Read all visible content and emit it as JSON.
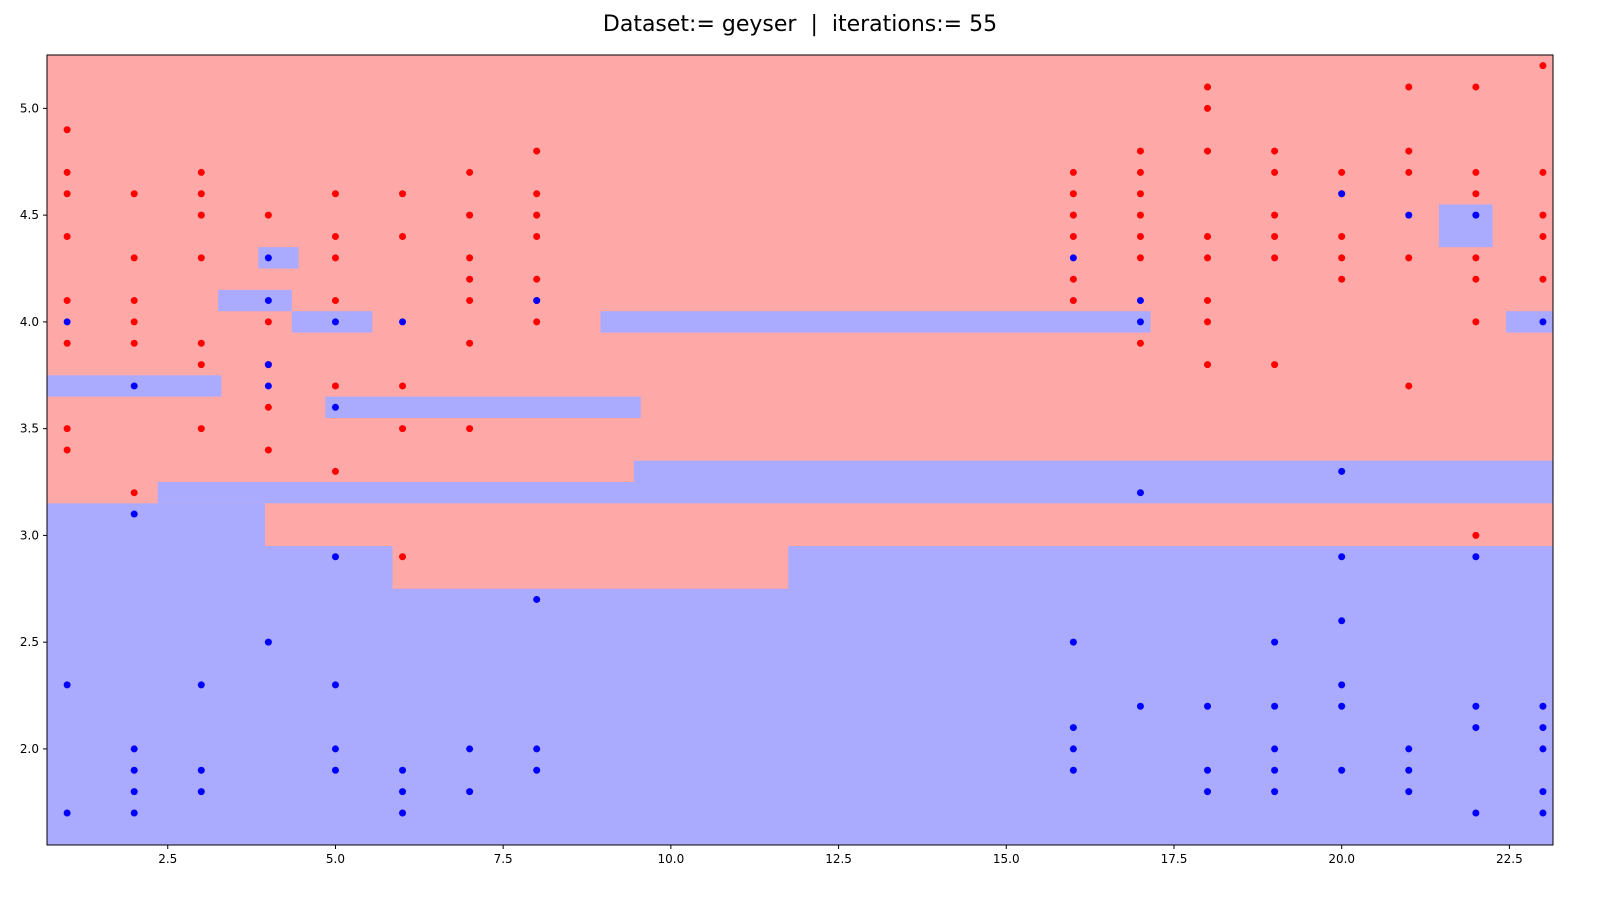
{
  "chart_data": {
    "type": "scatter",
    "title": "Dataset:= geyser  |  iterations:= 55",
    "xlabel": "",
    "ylabel": "",
    "xlim": [
      0.7,
      23.15
    ],
    "ylim": [
      1.55,
      5.25
    ],
    "grid": false,
    "x_ticks": [
      {
        "value": 2.5,
        "label": "2.5"
      },
      {
        "value": 5.0,
        "label": "5.0"
      },
      {
        "value": 7.5,
        "label": "7.5"
      },
      {
        "value": 10.0,
        "label": "10.0"
      },
      {
        "value": 12.5,
        "label": "12.5"
      },
      {
        "value": 15.0,
        "label": "15.0"
      },
      {
        "value": 17.5,
        "label": "17.5"
      },
      {
        "value": 20.0,
        "label": "20.0"
      },
      {
        "value": 22.5,
        "label": "22.5"
      }
    ],
    "y_ticks": [
      {
        "value": 2.0,
        "label": "2.0"
      },
      {
        "value": 2.5,
        "label": "2.5"
      },
      {
        "value": 3.0,
        "label": "3.0"
      },
      {
        "value": 3.5,
        "label": "3.5"
      },
      {
        "value": 4.0,
        "label": "4.0"
      },
      {
        "value": 4.5,
        "label": "4.5"
      },
      {
        "value": 5.0,
        "label": "5.0"
      }
    ],
    "colors": {
      "red_region": "#ffa8a8",
      "blue_region": "#aaaaff",
      "red_point": "#ff0000",
      "blue_point": "#0000ff"
    },
    "background_region": "red",
    "regions": [
      {
        "class": "blue",
        "x": [
          0.7,
          23.15
        ],
        "y": [
          1.55,
          3.15
        ]
      },
      {
        "class": "blue",
        "x": [
          2.35,
          9.45
        ],
        "y": [
          3.15,
          3.25
        ]
      },
      {
        "class": "blue",
        "x": [
          9.45,
          23.15
        ],
        "y": [
          3.15,
          3.35
        ]
      },
      {
        "class": "red",
        "x": [
          3.95,
          23.15
        ],
        "y": [
          2.95,
          3.15
        ]
      },
      {
        "class": "red",
        "x": [
          5.85,
          11.75
        ],
        "y": [
          2.75,
          2.95
        ]
      },
      {
        "class": "blue",
        "x": [
          0.7,
          3.3
        ],
        "y": [
          3.65,
          3.75
        ]
      },
      {
        "class": "blue",
        "x": [
          4.85,
          9.55
        ],
        "y": [
          3.55,
          3.65
        ]
      },
      {
        "class": "blue",
        "x": [
          4.35,
          5.55
        ],
        "y": [
          3.95,
          4.05
        ]
      },
      {
        "class": "blue",
        "x": [
          8.95,
          17.15
        ],
        "y": [
          3.95,
          4.05
        ]
      },
      {
        "class": "blue",
        "x": [
          22.45,
          23.15
        ],
        "y": [
          3.95,
          4.05
        ]
      },
      {
        "class": "blue",
        "x": [
          3.25,
          4.35
        ],
        "y": [
          4.05,
          4.15
        ]
      },
      {
        "class": "blue",
        "x": [
          3.85,
          4.45
        ],
        "y": [
          4.25,
          4.35
        ]
      },
      {
        "class": "blue",
        "x": [
          21.45,
          22.25
        ],
        "y": [
          4.35,
          4.55
        ]
      }
    ],
    "series": [
      {
        "class": "red",
        "points": [
          [
            1,
            4.9
          ],
          [
            1,
            4.7
          ],
          [
            1,
            4.6
          ],
          [
            1,
            4.4
          ],
          [
            1,
            4.1
          ],
          [
            1,
            3.9
          ],
          [
            1,
            3.5
          ],
          [
            1,
            3.4
          ],
          [
            2,
            4.6
          ],
          [
            2,
            4.3
          ],
          [
            2,
            4.1
          ],
          [
            2,
            4.0
          ],
          [
            2,
            3.9
          ],
          [
            2,
            3.2
          ],
          [
            3,
            4.7
          ],
          [
            3,
            4.6
          ],
          [
            3,
            4.5
          ],
          [
            3,
            4.3
          ],
          [
            3,
            3.9
          ],
          [
            3,
            3.8
          ],
          [
            3,
            3.5
          ],
          [
            4,
            4.5
          ],
          [
            4,
            4.0
          ],
          [
            4,
            3.8
          ],
          [
            4,
            3.6
          ],
          [
            4,
            3.4
          ],
          [
            5,
            4.6
          ],
          [
            5,
            4.4
          ],
          [
            5,
            4.3
          ],
          [
            5,
            4.1
          ],
          [
            5,
            3.7
          ],
          [
            5,
            3.3
          ],
          [
            6,
            4.6
          ],
          [
            6,
            4.4
          ],
          [
            6,
            3.7
          ],
          [
            6,
            3.5
          ],
          [
            6,
            2.9
          ],
          [
            7,
            4.7
          ],
          [
            7,
            4.5
          ],
          [
            7,
            4.3
          ],
          [
            7,
            4.2
          ],
          [
            7,
            4.1
          ],
          [
            7,
            3.9
          ],
          [
            7,
            3.5
          ],
          [
            8,
            4.8
          ],
          [
            8,
            4.6
          ],
          [
            8,
            4.5
          ],
          [
            8,
            4.4
          ],
          [
            8,
            4.2
          ],
          [
            8,
            4.1
          ],
          [
            8,
            4.0
          ],
          [
            16,
            4.7
          ],
          [
            16,
            4.6
          ],
          [
            16,
            4.5
          ],
          [
            16,
            4.4
          ],
          [
            16,
            4.2
          ],
          [
            16,
            4.1
          ],
          [
            17,
            4.8
          ],
          [
            17,
            4.7
          ],
          [
            17,
            4.6
          ],
          [
            17,
            4.5
          ],
          [
            17,
            4.4
          ],
          [
            17,
            4.3
          ],
          [
            17,
            3.9
          ],
          [
            18,
            5.1
          ],
          [
            18,
            5.0
          ],
          [
            18,
            4.8
          ],
          [
            18,
            4.4
          ],
          [
            18,
            4.3
          ],
          [
            18,
            4.1
          ],
          [
            18,
            4.0
          ],
          [
            18,
            3.8
          ],
          [
            19,
            4.8
          ],
          [
            19,
            4.7
          ],
          [
            19,
            4.5
          ],
          [
            19,
            4.4
          ],
          [
            19,
            4.3
          ],
          [
            19,
            3.8
          ],
          [
            20,
            4.7
          ],
          [
            20,
            4.6
          ],
          [
            20,
            4.4
          ],
          [
            20,
            4.3
          ],
          [
            20,
            4.2
          ],
          [
            21,
            5.1
          ],
          [
            21,
            4.8
          ],
          [
            21,
            4.7
          ],
          [
            21,
            4.3
          ],
          [
            21,
            3.7
          ],
          [
            22,
            5.1
          ],
          [
            22,
            4.7
          ],
          [
            22,
            4.6
          ],
          [
            22,
            4.3
          ],
          [
            22,
            4.2
          ],
          [
            22,
            4.0
          ],
          [
            22,
            3.0
          ],
          [
            23,
            5.2
          ],
          [
            23,
            4.7
          ],
          [
            23,
            4.5
          ],
          [
            23,
            4.4
          ],
          [
            23,
            4.2
          ]
        ]
      },
      {
        "class": "blue",
        "points": [
          [
            1,
            4.0
          ],
          [
            1,
            2.3
          ],
          [
            1,
            1.7
          ],
          [
            2,
            3.7
          ],
          [
            2,
            3.1
          ],
          [
            2,
            2.0
          ],
          [
            2,
            1.9
          ],
          [
            2,
            1.8
          ],
          [
            2,
            1.7
          ],
          [
            3,
            2.3
          ],
          [
            3,
            1.9
          ],
          [
            3,
            1.8
          ],
          [
            4,
            4.3
          ],
          [
            4,
            4.1
          ],
          [
            4,
            3.8
          ],
          [
            4,
            3.7
          ],
          [
            4,
            2.5
          ],
          [
            5,
            4.0
          ],
          [
            5,
            3.6
          ],
          [
            5,
            2.9
          ],
          [
            5,
            2.3
          ],
          [
            5,
            2.0
          ],
          [
            5,
            1.9
          ],
          [
            6,
            4.0
          ],
          [
            6,
            1.9
          ],
          [
            6,
            1.8
          ],
          [
            6,
            1.7
          ],
          [
            7,
            2.0
          ],
          [
            7,
            1.8
          ],
          [
            8,
            4.1
          ],
          [
            8,
            2.7
          ],
          [
            8,
            2.0
          ],
          [
            8,
            1.9
          ],
          [
            16,
            4.3
          ],
          [
            16,
            2.5
          ],
          [
            16,
            2.1
          ],
          [
            16,
            2.0
          ],
          [
            16,
            1.9
          ],
          [
            17,
            4.1
          ],
          [
            17,
            4.0
          ],
          [
            17,
            3.2
          ],
          [
            17,
            2.2
          ],
          [
            18,
            2.2
          ],
          [
            18,
            1.9
          ],
          [
            18,
            1.8
          ],
          [
            19,
            2.5
          ],
          [
            19,
            2.2
          ],
          [
            19,
            2.0
          ],
          [
            19,
            1.9
          ],
          [
            19,
            1.8
          ],
          [
            20,
            4.6
          ],
          [
            20,
            3.3
          ],
          [
            20,
            2.9
          ],
          [
            20,
            2.6
          ],
          [
            20,
            2.3
          ],
          [
            20,
            2.2
          ],
          [
            20,
            1.9
          ],
          [
            21,
            4.5
          ],
          [
            21,
            2.0
          ],
          [
            21,
            1.9
          ],
          [
            21,
            1.8
          ],
          [
            22,
            4.5
          ],
          [
            22,
            2.9
          ],
          [
            22,
            2.2
          ],
          [
            22,
            2.1
          ],
          [
            22,
            1.7
          ],
          [
            23,
            4.0
          ],
          [
            23,
            2.2
          ],
          [
            23,
            2.1
          ],
          [
            23,
            2.0
          ],
          [
            23,
            1.8
          ],
          [
            23,
            1.7
          ]
        ]
      }
    ]
  }
}
